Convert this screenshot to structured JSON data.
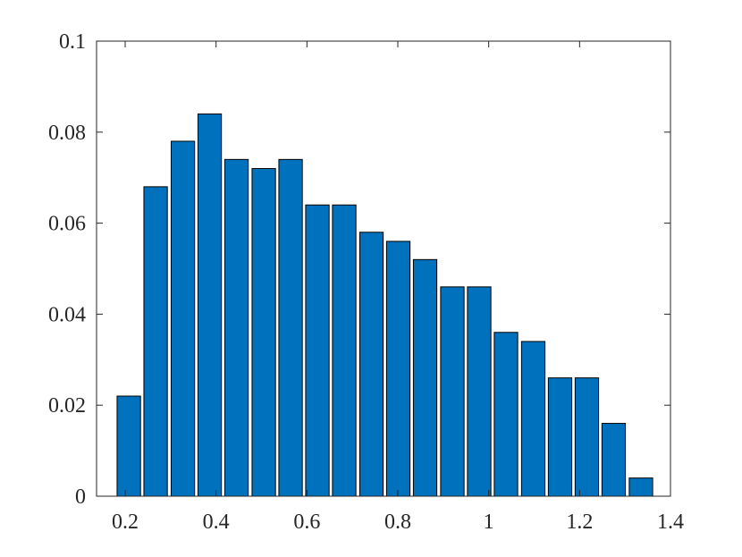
{
  "chart_data": {
    "type": "bar",
    "x": [
      0.208,
      0.267,
      0.327,
      0.386,
      0.445,
      0.505,
      0.564,
      0.623,
      0.682,
      0.742,
      0.801,
      0.86,
      0.92,
      0.979,
      1.038,
      1.098,
      1.157,
      1.216,
      1.275,
      1.335
    ],
    "values": [
      0.022,
      0.068,
      0.078,
      0.084,
      0.074,
      0.072,
      0.074,
      0.064,
      0.064,
      0.058,
      0.056,
      0.052,
      0.046,
      0.046,
      0.036,
      0.034,
      0.026,
      0.026,
      0.016,
      0.004
    ],
    "color": "#0072bd",
    "xlim": [
      0.137,
      1.4
    ],
    "xticks": [
      0.2,
      0.4,
      0.6,
      0.8,
      1,
      1.2,
      1.4
    ],
    "ylim": [
      0,
      0.1
    ],
    "yticks": [
      0,
      0.02,
      0.04,
      0.06,
      0.08,
      0.1
    ],
    "grid": false
  }
}
